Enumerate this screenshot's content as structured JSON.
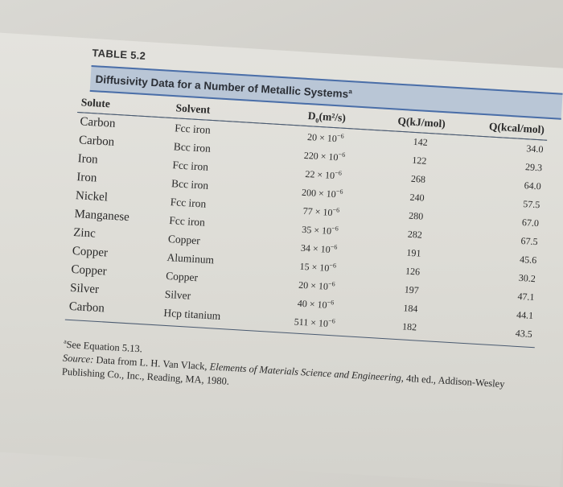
{
  "table_label": "TABLE 5.2",
  "title": "Diffusivity Data for a Number of Metallic Systems",
  "title_note_marker": "a",
  "columns": {
    "solute": "Solute",
    "solvent": "Solvent",
    "d0_base": "D",
    "d0_sub": "0",
    "d0_units": "(m²/s)",
    "q_kj": "Q(kJ/mol)",
    "q_kcal": "Q(kcal/mol)"
  },
  "rows": [
    {
      "solute": "Carbon",
      "solvent": "Fcc iron",
      "d0_mant": "20 × 10",
      "d0_exp": "−6",
      "q_kj": "142",
      "q_kcal": "34.0"
    },
    {
      "solute": "Carbon",
      "solvent": "Bcc iron",
      "d0_mant": "220 × 10",
      "d0_exp": "−6",
      "q_kj": "122",
      "q_kcal": "29.3"
    },
    {
      "solute": "Iron",
      "solvent": "Fcc iron",
      "d0_mant": "22 × 10",
      "d0_exp": "−6",
      "q_kj": "268",
      "q_kcal": "64.0"
    },
    {
      "solute": "Iron",
      "solvent": "Bcc iron",
      "d0_mant": "200 × 10",
      "d0_exp": "−6",
      "q_kj": "240",
      "q_kcal": "57.5"
    },
    {
      "solute": "Nickel",
      "solvent": "Fcc iron",
      "d0_mant": "77 × 10",
      "d0_exp": "−6",
      "q_kj": "280",
      "q_kcal": "67.0"
    },
    {
      "solute": "Manganese",
      "solvent": "Fcc iron",
      "d0_mant": "35 × 10",
      "d0_exp": "−6",
      "q_kj": "282",
      "q_kcal": "67.5"
    },
    {
      "solute": "Zinc",
      "solvent": "Copper",
      "d0_mant": "34 × 10",
      "d0_exp": "−6",
      "q_kj": "191",
      "q_kcal": "45.6"
    },
    {
      "solute": "Copper",
      "solvent": "Aluminum",
      "d0_mant": "15 × 10",
      "d0_exp": "−6",
      "q_kj": "126",
      "q_kcal": "30.2"
    },
    {
      "solute": "Copper",
      "solvent": "Copper",
      "d0_mant": "20 × 10",
      "d0_exp": "−6",
      "q_kj": "197",
      "q_kcal": "47.1"
    },
    {
      "solute": "Silver",
      "solvent": "Silver",
      "d0_mant": "40 × 10",
      "d0_exp": "−6",
      "q_kj": "184",
      "q_kcal": "44.1"
    },
    {
      "solute": "Carbon",
      "solvent": "Hcp titanium",
      "d0_mant": "511 × 10",
      "d0_exp": "−6",
      "q_kj": "182",
      "q_kcal": "43.5"
    }
  ],
  "footnote": {
    "marker": "a",
    "text": "See Equation 5.13."
  },
  "source": {
    "label": "Source:",
    "text_before": "Data from L. H. Van Vlack,",
    "book_title": "Elements of Materials Science and Engineering",
    "text_after": ", 4th ed., Addison-Wesley Publishing Co., Inc., Reading, MA, 1980."
  }
}
